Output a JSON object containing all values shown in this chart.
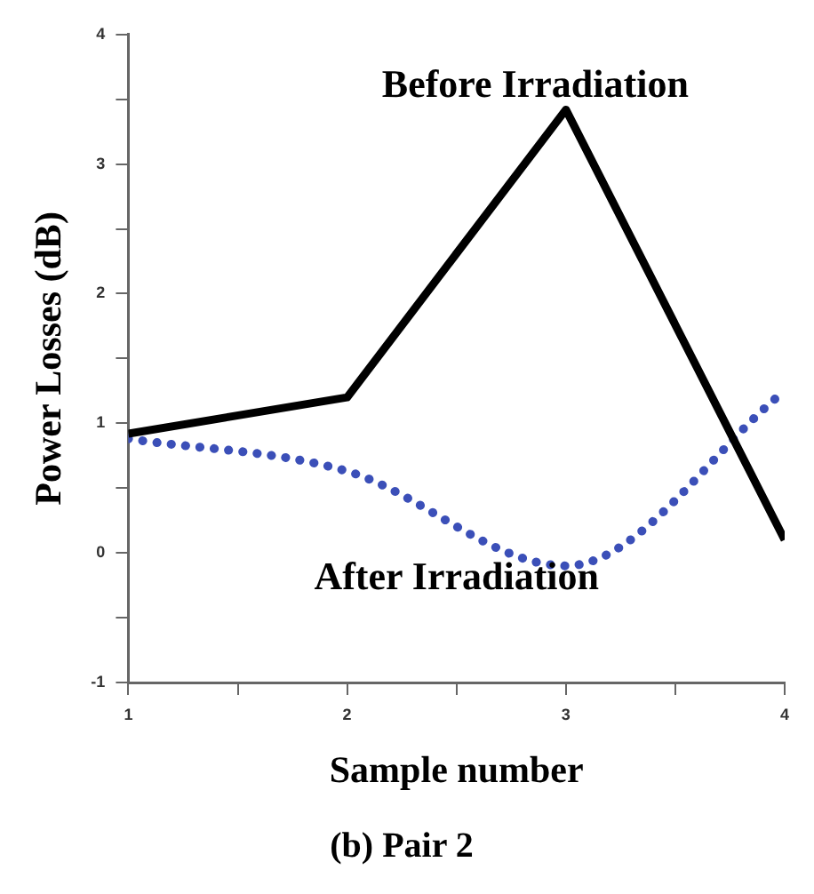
{
  "chart_data": {
    "type": "line",
    "title": "(b) Pair 2",
    "xlabel": "Sample number",
    "ylabel": "Power Losses (dB)",
    "x": [
      1,
      2,
      3,
      4
    ],
    "series": [
      {
        "name": "Before Irradiation",
        "color": "#000000",
        "line_style": "solid",
        "values": [
          0.92,
          1.2,
          3.42,
          0.1
        ]
      },
      {
        "name": "After Irradiation",
        "color": "#3b4fb8",
        "line_style": "dotted",
        "values": [
          0.88,
          0.63,
          -0.1,
          1.25
        ]
      }
    ],
    "xlim": [
      1,
      4
    ],
    "xticks": [
      1,
      {
        "value": 1.5,
        "label": null
      },
      2,
      {
        "value": 2.5,
        "label": null
      },
      3,
      {
        "value": 3.5,
        "label": null
      },
      4
    ],
    "ylim": [
      -1,
      4
    ],
    "yticks": [
      -1,
      {
        "value": -0.5,
        "label": null
      },
      0,
      {
        "value": 0.5,
        "label": null
      },
      1,
      {
        "value": 1.5,
        "label": null
      },
      2,
      {
        "value": 2.5,
        "label": null
      },
      3,
      {
        "value": 3.5,
        "label": null
      },
      4
    ],
    "grid": false,
    "legend": false,
    "marker": "none"
  }
}
